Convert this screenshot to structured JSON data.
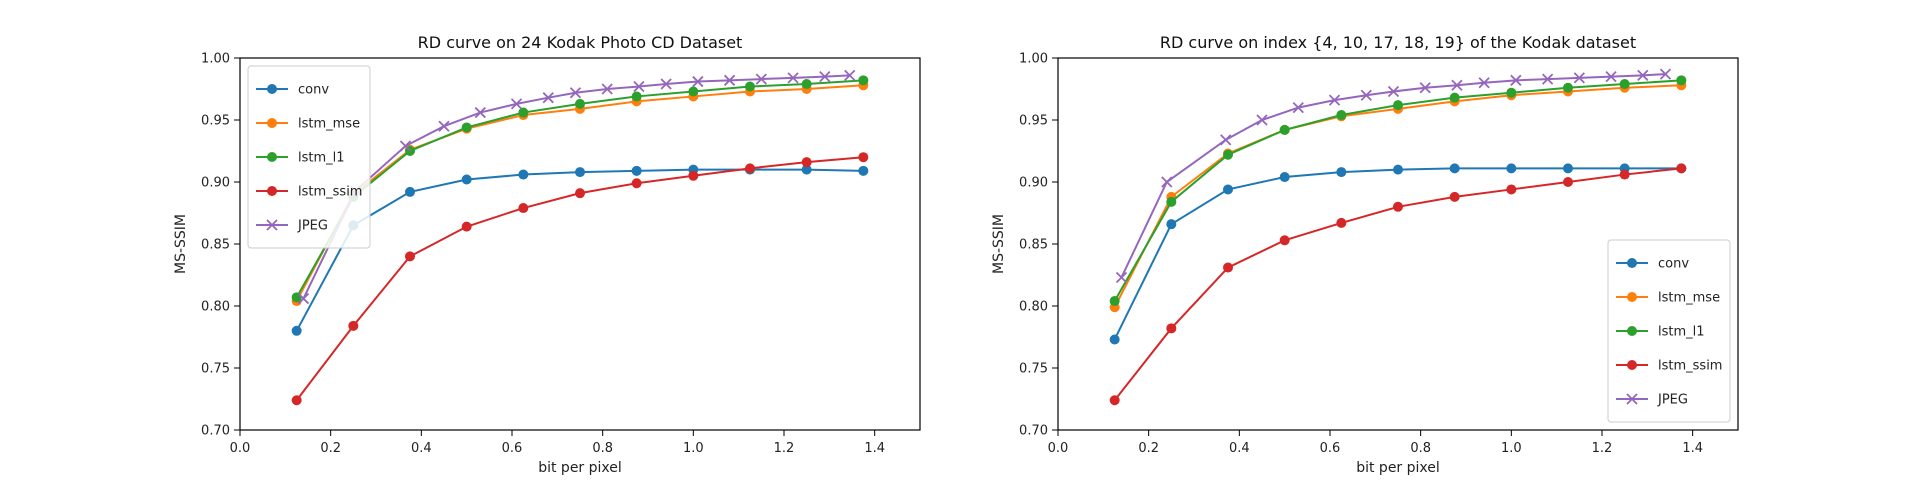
{
  "chart_data": [
    {
      "type": "line",
      "title": "RD curve on 24 Kodak Photo CD Dataset",
      "xlabel": "bit per pixel",
      "ylabel": "MS-SSIM",
      "xlim": [
        0.0,
        1.5
      ],
      "ylim": [
        0.7,
        1.0
      ],
      "xticks": [
        "0.0",
        "0.2",
        "0.4",
        "0.6",
        "0.8",
        "1.0",
        "1.2",
        "1.4"
      ],
      "yticks": [
        "0.70",
        "0.75",
        "0.80",
        "0.85",
        "0.90",
        "0.95",
        "1.00"
      ],
      "grid": false,
      "legend_position": "upper-left",
      "series": [
        {
          "name": "conv",
          "color": "#1f77b4",
          "marker": "circle",
          "x": [
            0.125,
            0.25,
            0.375,
            0.5,
            0.625,
            0.75,
            0.875,
            1.0,
            1.125,
            1.25,
            1.375
          ],
          "y": [
            0.78,
            0.865,
            0.892,
            0.902,
            0.906,
            0.908,
            0.909,
            0.91,
            0.91,
            0.91,
            0.909
          ]
        },
        {
          "name": "lstm_mse",
          "color": "#ff7f0e",
          "marker": "circle",
          "x": [
            0.125,
            0.25,
            0.375,
            0.5,
            0.625,
            0.75,
            0.875,
            1.0,
            1.125,
            1.25,
            1.375
          ],
          "y": [
            0.804,
            0.89,
            0.926,
            0.943,
            0.954,
            0.959,
            0.965,
            0.969,
            0.973,
            0.975,
            0.978
          ]
        },
        {
          "name": "lstm_l1",
          "color": "#2ca02c",
          "marker": "circle",
          "x": [
            0.125,
            0.25,
            0.375,
            0.5,
            0.625,
            0.75,
            0.875,
            1.0,
            1.125,
            1.25,
            1.375
          ],
          "y": [
            0.807,
            0.888,
            0.925,
            0.944,
            0.956,
            0.963,
            0.969,
            0.973,
            0.977,
            0.979,
            0.982
          ]
        },
        {
          "name": "lstm_ssim",
          "color": "#d62728",
          "marker": "circle",
          "x": [
            0.125,
            0.25,
            0.375,
            0.5,
            0.625,
            0.75,
            0.875,
            1.0,
            1.125,
            1.25,
            1.375
          ],
          "y": [
            0.724,
            0.784,
            0.84,
            0.864,
            0.879,
            0.891,
            0.899,
            0.905,
            0.911,
            0.916,
            0.92
          ]
        },
        {
          "name": "JPEG",
          "color": "#9467bd",
          "marker": "x",
          "x": [
            0.14,
            0.255,
            0.365,
            0.45,
            0.53,
            0.61,
            0.68,
            0.74,
            0.81,
            0.88,
            0.94,
            1.01,
            1.08,
            1.15,
            1.22,
            1.29,
            1.345
          ],
          "y": [
            0.806,
            0.893,
            0.929,
            0.945,
            0.956,
            0.963,
            0.968,
            0.972,
            0.975,
            0.977,
            0.979,
            0.981,
            0.982,
            0.983,
            0.984,
            0.985,
            0.986
          ]
        }
      ]
    },
    {
      "type": "line",
      "title": "RD curve on index {4, 10, 17, 18, 19} of the Kodak dataset",
      "xlabel": "bit per pixel",
      "ylabel": "MS-SSIM",
      "xlim": [
        0.0,
        1.5
      ],
      "ylim": [
        0.7,
        1.0
      ],
      "xticks": [
        "0.0",
        "0.2",
        "0.4",
        "0.6",
        "0.8",
        "1.0",
        "1.2",
        "1.4"
      ],
      "yticks": [
        "0.70",
        "0.75",
        "0.80",
        "0.85",
        "0.90",
        "0.95",
        "1.00"
      ],
      "grid": false,
      "legend_position": "lower-right",
      "series": [
        {
          "name": "conv",
          "color": "#1f77b4",
          "marker": "circle",
          "x": [
            0.125,
            0.25,
            0.375,
            0.5,
            0.625,
            0.75,
            0.875,
            1.0,
            1.125,
            1.25,
            1.375
          ],
          "y": [
            0.773,
            0.866,
            0.894,
            0.904,
            0.908,
            0.91,
            0.911,
            0.911,
            0.911,
            0.911,
            0.911
          ]
        },
        {
          "name": "lstm_mse",
          "color": "#ff7f0e",
          "marker": "circle",
          "x": [
            0.125,
            0.25,
            0.375,
            0.5,
            0.625,
            0.75,
            0.875,
            1.0,
            1.125,
            1.25,
            1.375
          ],
          "y": [
            0.799,
            0.888,
            0.923,
            0.942,
            0.953,
            0.959,
            0.965,
            0.97,
            0.973,
            0.976,
            0.978
          ]
        },
        {
          "name": "lstm_l1",
          "color": "#2ca02c",
          "marker": "circle",
          "x": [
            0.125,
            0.25,
            0.375,
            0.5,
            0.625,
            0.75,
            0.875,
            1.0,
            1.125,
            1.25,
            1.375
          ],
          "y": [
            0.804,
            0.884,
            0.922,
            0.942,
            0.954,
            0.962,
            0.968,
            0.972,
            0.976,
            0.979,
            0.982
          ]
        },
        {
          "name": "lstm_ssim",
          "color": "#d62728",
          "marker": "circle",
          "x": [
            0.125,
            0.25,
            0.375,
            0.5,
            0.625,
            0.75,
            0.875,
            1.0,
            1.125,
            1.25,
            1.375
          ],
          "y": [
            0.724,
            0.782,
            0.831,
            0.853,
            0.867,
            0.88,
            0.888,
            0.894,
            0.9,
            0.906,
            0.911
          ]
        },
        {
          "name": "JPEG",
          "color": "#9467bd",
          "marker": "x",
          "x": [
            0.14,
            0.24,
            0.37,
            0.45,
            0.53,
            0.61,
            0.68,
            0.74,
            0.81,
            0.88,
            0.94,
            1.01,
            1.08,
            1.15,
            1.22,
            1.29,
            1.34
          ],
          "y": [
            0.823,
            0.9,
            0.934,
            0.95,
            0.96,
            0.966,
            0.97,
            0.973,
            0.976,
            0.978,
            0.98,
            0.982,
            0.983,
            0.984,
            0.985,
            0.986,
            0.987
          ]
        }
      ]
    }
  ]
}
